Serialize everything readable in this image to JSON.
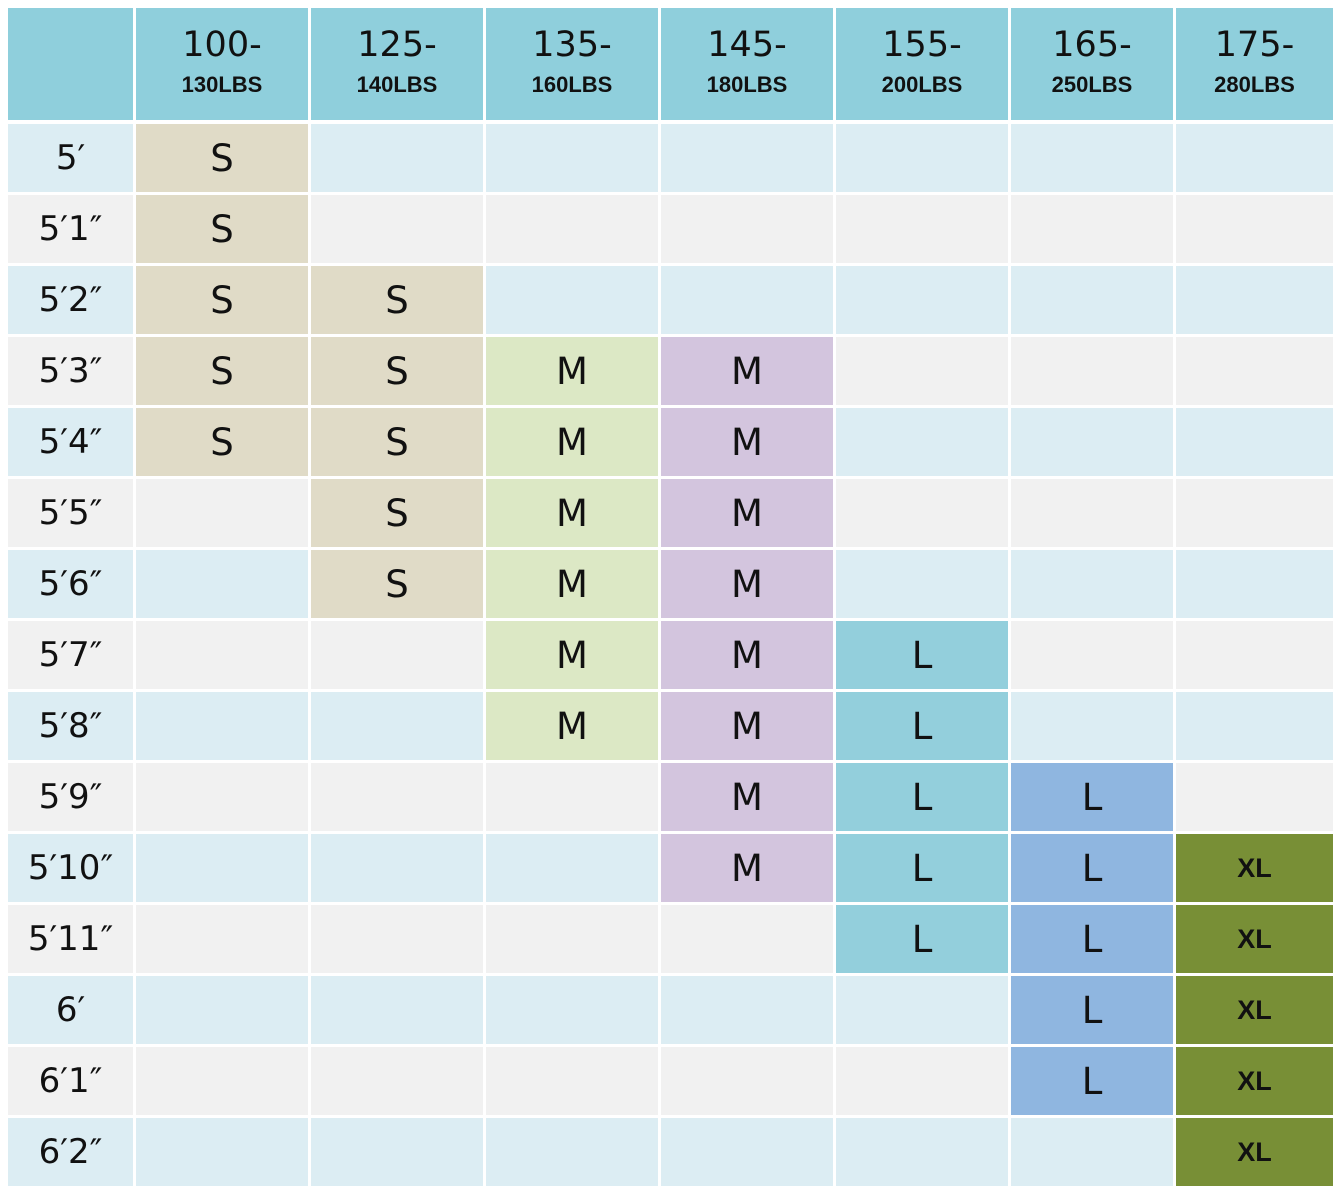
{
  "chart_data": {
    "type": "table",
    "columns": [
      {
        "top": "100-",
        "bottom": "130LBS"
      },
      {
        "top": "125-",
        "bottom": "140LBS"
      },
      {
        "top": "135-",
        "bottom": "160LBS"
      },
      {
        "top": "145-",
        "bottom": "180LBS"
      },
      {
        "top": "155-",
        "bottom": "200LBS"
      },
      {
        "top": "165-",
        "bottom": "250LBS"
      },
      {
        "top": "175-",
        "bottom": "280LBS"
      }
    ],
    "rows": [
      "5′",
      "5′1″",
      "5′2″",
      "5′3″",
      "5′4″",
      "5′5″",
      "5′6″",
      "5′7″",
      "5′8″",
      "5′9″",
      "5′10″",
      "5′11″",
      "6′",
      "6′1″",
      "6′2″"
    ],
    "cells": [
      [
        "S",
        "",
        "",
        "",
        "",
        "",
        ""
      ],
      [
        "S",
        "",
        "",
        "",
        "",
        "",
        ""
      ],
      [
        "S",
        "S",
        "",
        "",
        "",
        "",
        ""
      ],
      [
        "S",
        "S",
        "M",
        "M",
        "",
        "",
        ""
      ],
      [
        "S",
        "S",
        "M",
        "M",
        "",
        "",
        ""
      ],
      [
        "",
        "S",
        "M",
        "M",
        "",
        "",
        ""
      ],
      [
        "",
        "S",
        "M",
        "M",
        "",
        "",
        ""
      ],
      [
        "",
        "",
        "M",
        "M",
        "L",
        "",
        ""
      ],
      [
        "",
        "",
        "M",
        "M",
        "L",
        "",
        ""
      ],
      [
        "",
        "",
        "",
        "M",
        "L",
        "L",
        ""
      ],
      [
        "",
        "",
        "",
        "M",
        "L",
        "L",
        "XL"
      ],
      [
        "",
        "",
        "",
        "",
        "L",
        "L",
        "XL"
      ],
      [
        "",
        "",
        "",
        "",
        "",
        "L",
        "XL"
      ],
      [
        "",
        "",
        "",
        "",
        "",
        "L",
        "XL"
      ],
      [
        "",
        "",
        "",
        "",
        "",
        "",
        "XL"
      ]
    ]
  },
  "colors": {
    "header": "#8fcfdc",
    "row_light_blue": "#dcedf3",
    "row_light_gray": "#f1f1f1",
    "S": "#e0dbc7",
    "M_col3": "#dce8c5",
    "M_col4": "#d3c5de",
    "L_col5": "#93cfdc",
    "L_col6": "#8fb6e0",
    "XL": "#788f36"
  }
}
